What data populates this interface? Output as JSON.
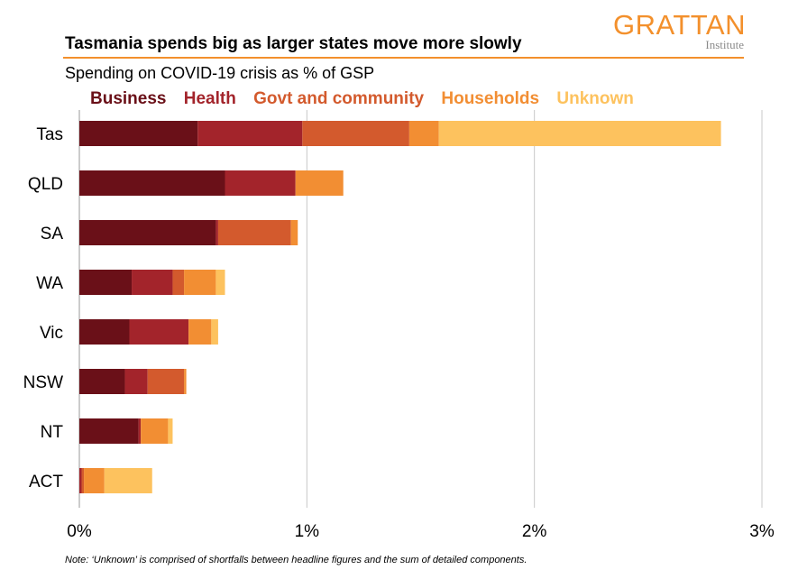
{
  "logo": {
    "name": "GRATTAN",
    "sub": "Institute"
  },
  "title": "Tasmania spends big as larger states move more slowly",
  "subtitle": "Spending on COVID-19 crisis as % of GSP",
  "note": "Note: ‘Unknown’ is comprised of shortfalls between headline figures and the sum of detailed components.",
  "colors": {
    "brand": "#f3902c",
    "grid": "#c8c8c8",
    "axis": "#9a9a9a"
  },
  "chart_data": {
    "type": "bar",
    "orientation": "horizontal",
    "stacked": true,
    "categories": [
      "Tas",
      "QLD",
      "SA",
      "WA",
      "Vic",
      "NSW",
      "NT",
      "ACT"
    ],
    "series": [
      {
        "name": "Business",
        "color": "#6a1018",
        "values": [
          0.52,
          0.64,
          0.6,
          0.23,
          0.22,
          0.2,
          0.26,
          0.0
        ]
      },
      {
        "name": "Health",
        "color": "#a3242b",
        "values": [
          0.46,
          0.31,
          0.01,
          0.18,
          0.26,
          0.1,
          0.01,
          0.01
        ]
      },
      {
        "name": "Govt and community",
        "color": "#d35a2d",
        "values": [
          0.47,
          0.0,
          0.32,
          0.05,
          0.0,
          0.16,
          0.0,
          0.01
        ]
      },
      {
        "name": "Households",
        "color": "#f28e33",
        "values": [
          0.13,
          0.21,
          0.03,
          0.14,
          0.1,
          0.01,
          0.12,
          0.09
        ]
      },
      {
        "name": "Unknown",
        "color": "#fdc25e",
        "values": [
          1.24,
          0.0,
          0.0,
          0.04,
          0.03,
          0.0,
          0.02,
          0.21
        ]
      }
    ],
    "x_range": [
      0,
      3
    ],
    "x_ticks": [
      0,
      1,
      2,
      3
    ],
    "x_tick_labels": [
      "0%",
      "1%",
      "2%",
      "3%"
    ],
    "xlabel": "",
    "ylabel": "",
    "grid": true,
    "legend": "top"
  }
}
